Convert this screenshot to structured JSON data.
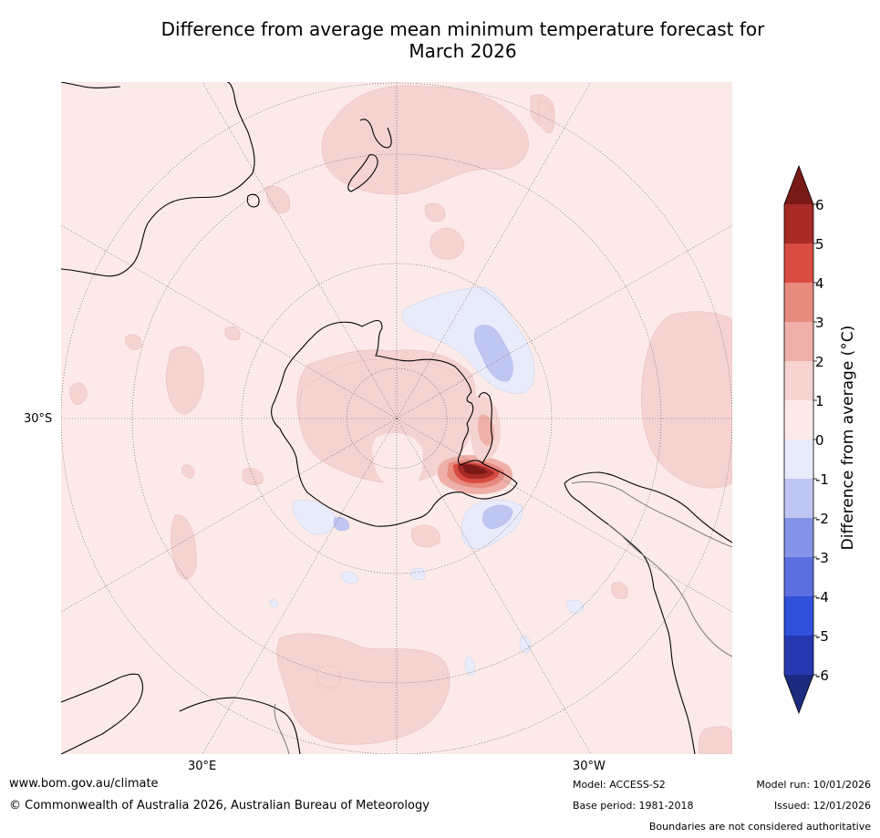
{
  "title": {
    "line1": "Difference from average mean minimum temperature forecast for",
    "line2": "March 2026"
  },
  "map": {
    "projection": "south-polar-stereographic",
    "lat_label_left": "30°S",
    "lon_label_30e": "30°E",
    "lon_label_30w": "30°W"
  },
  "colorbar": {
    "label": "Difference from average (°C)",
    "ticks": [
      "6",
      "5",
      "4",
      "3",
      "2",
      "1",
      "0",
      "-1",
      "-2",
      "-3",
      "-4",
      "-5",
      "-6"
    ],
    "colors": {
      "max_arrow": "#7a1a17",
      "b5_6": "#a82a26",
      "b4_5": "#d94c42",
      "b3_4": "#e88a80",
      "b2_3": "#eeb0a9",
      "b1_2": "#f5d3d1",
      "b0_1": "#fbeae8",
      "bm1_0": "#e8ebfa",
      "bm2_m1": "#c0c6f2",
      "bm3_m2": "#8593e8",
      "bm4_m3": "#5c6fe0",
      "bm5_m4": "#3150dc",
      "bm6_m5": "#2538b0",
      "min_arrow": "#1c2a7f"
    }
  },
  "footer": {
    "website": "www.bom.gov.au/climate",
    "copyright": "© Commonwealth of Australia 2026, Australian Bureau of Meteorology",
    "model": "Model: ACCESS-S2",
    "base_period": "Base period: 1981-2018",
    "model_run": "Model run: 10/01/2026",
    "issued": "Issued: 12/01/2026",
    "disclaimer": "Boundaries are not considered authoritative"
  }
}
